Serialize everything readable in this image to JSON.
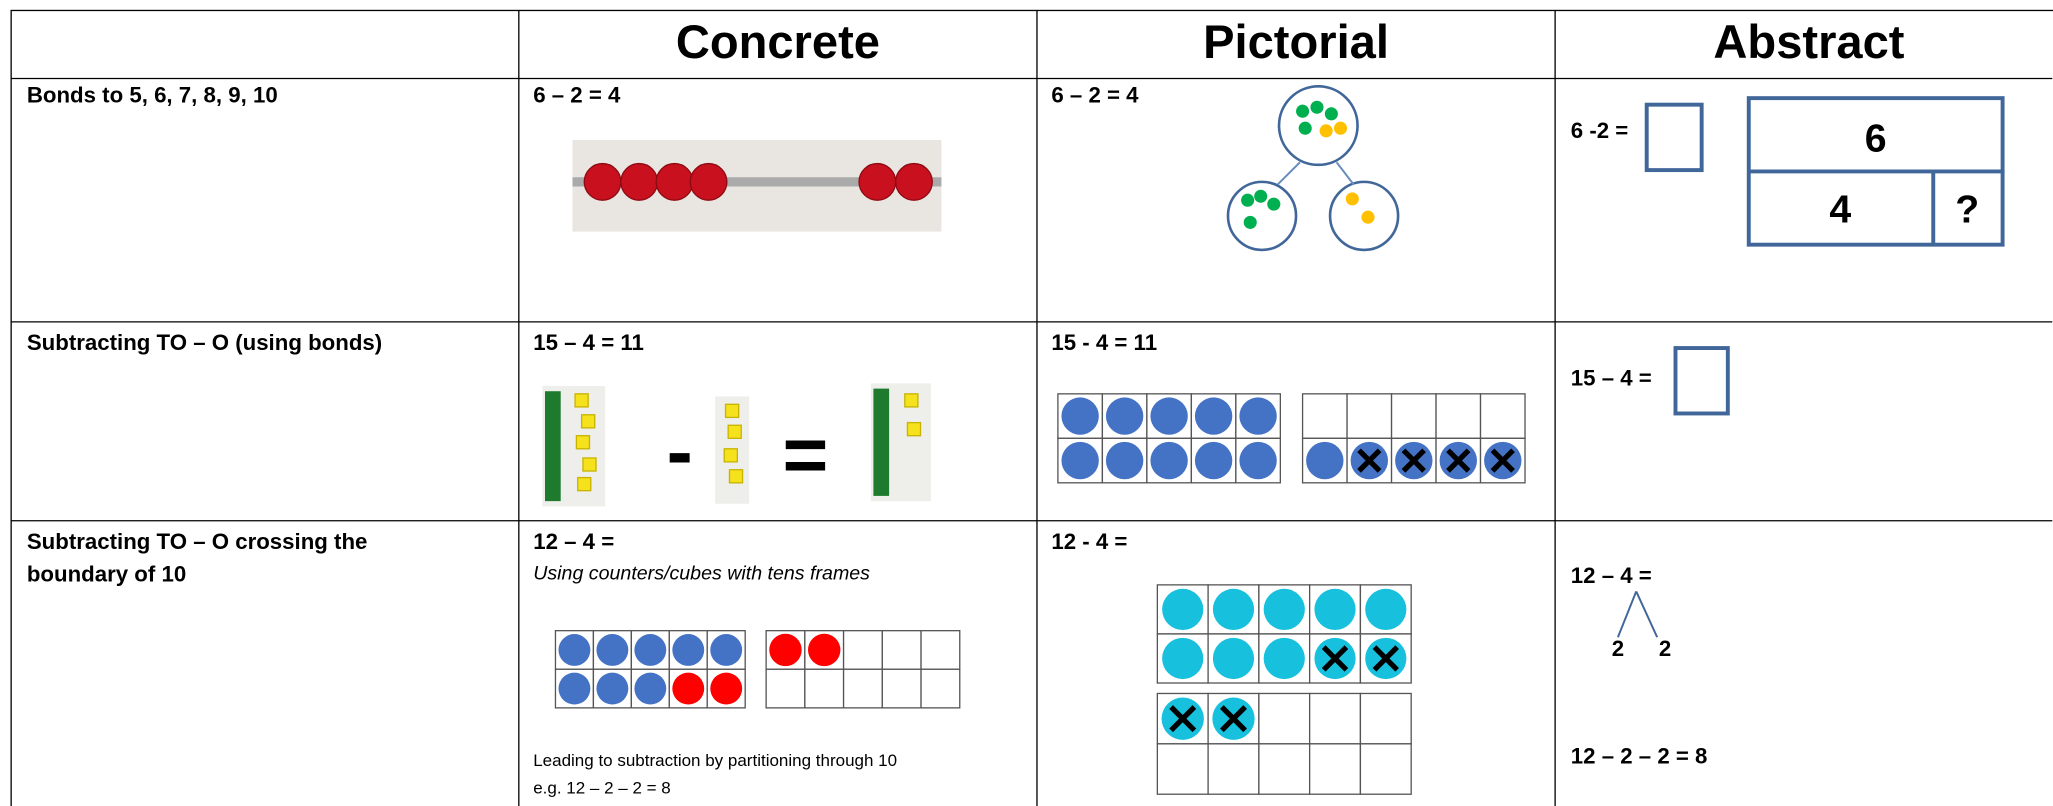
{
  "header": {
    "columns": [
      "Concrete",
      "Pictorial",
      "Abstract"
    ]
  },
  "rows": [
    {
      "topic": [
        "Bonds to 5, 6, 7, 8, 9, 10"
      ],
      "concrete": {
        "equation": "6 – 2 = 4"
      },
      "pictorial": {
        "equation": "6 – 2 = 4"
      },
      "abstract": {
        "equation": "6 -2 =",
        "bar_whole": "6",
        "bar_part": "4",
        "bar_unknown": "?"
      }
    },
    {
      "topic": [
        "Subtracting TO – O (using bonds)"
      ],
      "concrete": {
        "equation": "15 – 4 = 11",
        "minus_sign": "-",
        "equals_sign": "="
      },
      "pictorial": {
        "equation": "15 - 4 = 11"
      },
      "abstract": {
        "equation": "15 – 4 ="
      }
    },
    {
      "topic": [
        "Subtracting TO – O crossing the",
        "boundary of 10"
      ],
      "concrete": {
        "equation": "12 – 4 =",
        "note": "Using counters/cubes with tens frames",
        "footnote": [
          "Leading to subtraction by partitioning through 10",
          "e.g. 12 – 2 – 2 = 8"
        ]
      },
      "pictorial": {
        "equation": "12 - 4 ="
      },
      "abstract": {
        "equation": "12 – 4 =",
        "partition": [
          "2",
          "2"
        ],
        "result": "12 – 2 – 2 = 8"
      }
    }
  ]
}
